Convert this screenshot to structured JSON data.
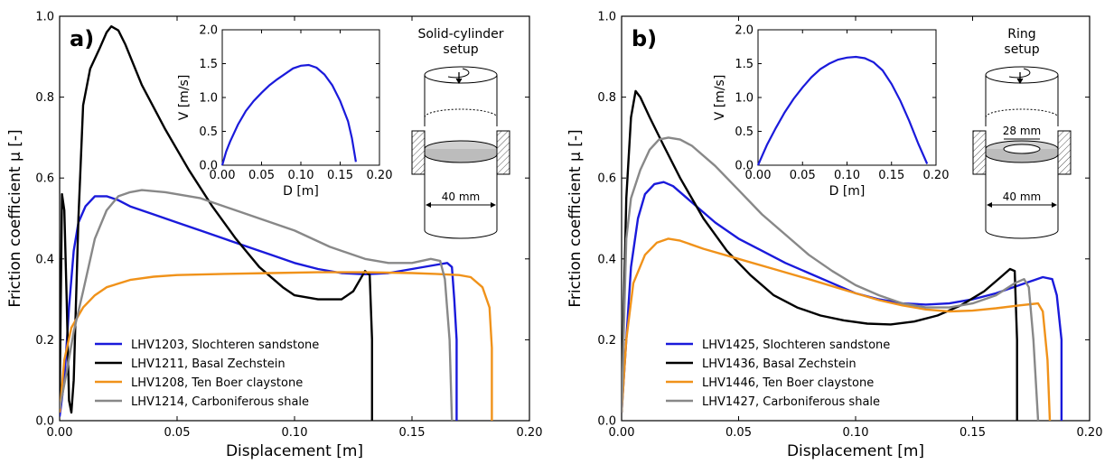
{
  "chart_data": [
    {
      "type": "line",
      "panel_label": "a)",
      "xlabel": "Displacement [m]",
      "ylabel": "Friction coefficient μ [-]",
      "xlim": [
        0,
        0.2
      ],
      "ylim": [
        0,
        1.0
      ],
      "xticks": [
        "0.00",
        "0.05",
        "0.10",
        "0.15",
        "0.20"
      ],
      "yticks": [
        "0.0",
        "0.2",
        "0.4",
        "0.6",
        "0.8",
        "1.0"
      ],
      "legend_position": "lower-left",
      "series": [
        {
          "name": "LHV1203, Slochteren sandstone",
          "color": "#1a1adb",
          "points": [
            [
              0,
              0.01
            ],
            [
              0.002,
              0.1
            ],
            [
              0.004,
              0.28
            ],
            [
              0.006,
              0.42
            ],
            [
              0.008,
              0.49
            ],
            [
              0.011,
              0.53
            ],
            [
              0.015,
              0.555
            ],
            [
              0.02,
              0.555
            ],
            [
              0.025,
              0.545
            ],
            [
              0.03,
              0.53
            ],
            [
              0.04,
              0.51
            ],
            [
              0.05,
              0.49
            ],
            [
              0.06,
              0.47
            ],
            [
              0.07,
              0.45
            ],
            [
              0.08,
              0.43
            ],
            [
              0.09,
              0.41
            ],
            [
              0.1,
              0.39
            ],
            [
              0.11,
              0.375
            ],
            [
              0.12,
              0.365
            ],
            [
              0.13,
              0.362
            ],
            [
              0.14,
              0.365
            ],
            [
              0.15,
              0.375
            ],
            [
              0.16,
              0.385
            ],
            [
              0.165,
              0.39
            ],
            [
              0.167,
              0.38
            ],
            [
              0.168,
              0.3
            ],
            [
              0.169,
              0.2
            ],
            [
              0.169,
              0.0
            ]
          ]
        },
        {
          "name": "LHV1211, Basal Zechstein",
          "color": "#000000",
          "points": [
            [
              0,
              0.04
            ],
            [
              0.001,
              0.56
            ],
            [
              0.002,
              0.52
            ],
            [
              0.003,
              0.3
            ],
            [
              0.004,
              0.05
            ],
            [
              0.005,
              0.02
            ],
            [
              0.006,
              0.1
            ],
            [
              0.008,
              0.5
            ],
            [
              0.01,
              0.78
            ],
            [
              0.013,
              0.87
            ],
            [
              0.017,
              0.92
            ],
            [
              0.02,
              0.96
            ],
            [
              0.022,
              0.975
            ],
            [
              0.025,
              0.965
            ],
            [
              0.028,
              0.93
            ],
            [
              0.035,
              0.83
            ],
            [
              0.045,
              0.72
            ],
            [
              0.055,
              0.62
            ],
            [
              0.065,
              0.53
            ],
            [
              0.075,
              0.45
            ],
            [
              0.085,
              0.38
            ],
            [
              0.095,
              0.33
            ],
            [
              0.1,
              0.31
            ],
            [
              0.11,
              0.3
            ],
            [
              0.12,
              0.3
            ],
            [
              0.125,
              0.32
            ],
            [
              0.13,
              0.37
            ],
            [
              0.132,
              0.36
            ],
            [
              0.133,
              0.2
            ],
            [
              0.133,
              0.0
            ]
          ]
        },
        {
          "name": "LHV1208, Ten Boer claystone",
          "color": "#f0921a",
          "points": [
            [
              0,
              0.02
            ],
            [
              0.002,
              0.15
            ],
            [
              0.005,
              0.23
            ],
            [
              0.01,
              0.28
            ],
            [
              0.015,
              0.31
            ],
            [
              0.02,
              0.33
            ],
            [
              0.03,
              0.348
            ],
            [
              0.04,
              0.356
            ],
            [
              0.05,
              0.36
            ],
            [
              0.07,
              0.363
            ],
            [
              0.09,
              0.365
            ],
            [
              0.11,
              0.367
            ],
            [
              0.13,
              0.367
            ],
            [
              0.15,
              0.365
            ],
            [
              0.16,
              0.363
            ],
            [
              0.17,
              0.36
            ],
            [
              0.175,
              0.355
            ],
            [
              0.18,
              0.33
            ],
            [
              0.183,
              0.28
            ],
            [
              0.184,
              0.18
            ],
            [
              0.184,
              0.0
            ]
          ]
        },
        {
          "name": "LHV1214, Carboniferous shale",
          "color": "#888888",
          "points": [
            [
              0,
              0.03
            ],
            [
              0.003,
              0.12
            ],
            [
              0.006,
              0.22
            ],
            [
              0.01,
              0.32
            ],
            [
              0.015,
              0.45
            ],
            [
              0.02,
              0.52
            ],
            [
              0.025,
              0.555
            ],
            [
              0.03,
              0.565
            ],
            [
              0.035,
              0.57
            ],
            [
              0.045,
              0.565
            ],
            [
              0.06,
              0.55
            ],
            [
              0.08,
              0.51
            ],
            [
              0.1,
              0.47
            ],
            [
              0.115,
              0.43
            ],
            [
              0.13,
              0.4
            ],
            [
              0.14,
              0.39
            ],
            [
              0.15,
              0.39
            ],
            [
              0.158,
              0.4
            ],
            [
              0.162,
              0.395
            ],
            [
              0.164,
              0.35
            ],
            [
              0.166,
              0.2
            ],
            [
              0.167,
              0.0
            ]
          ]
        }
      ],
      "inset": {
        "type": "line",
        "xlabel": "D [m]",
        "ylabel": "V [m/s]",
        "xlim": [
          0,
          0.2
        ],
        "ylim": [
          0,
          2.0
        ],
        "xticks": [
          "0.00",
          "0.05",
          "0.10",
          "0.15",
          "0.20"
        ],
        "yticks": [
          "0.0",
          "0.5",
          "1.0",
          "1.5",
          "2.0"
        ],
        "color": "#1a1adb",
        "points": [
          [
            0,
            0
          ],
          [
            0.005,
            0.2
          ],
          [
            0.01,
            0.35
          ],
          [
            0.02,
            0.6
          ],
          [
            0.03,
            0.8
          ],
          [
            0.04,
            0.95
          ],
          [
            0.05,
            1.07
          ],
          [
            0.06,
            1.18
          ],
          [
            0.07,
            1.27
          ],
          [
            0.08,
            1.35
          ],
          [
            0.09,
            1.43
          ],
          [
            0.1,
            1.47
          ],
          [
            0.11,
            1.48
          ],
          [
            0.12,
            1.44
          ],
          [
            0.13,
            1.34
          ],
          [
            0.14,
            1.18
          ],
          [
            0.15,
            0.95
          ],
          [
            0.16,
            0.65
          ],
          [
            0.165,
            0.4
          ],
          [
            0.17,
            0.05
          ]
        ]
      },
      "setup_title_lines": [
        "Solid-cylinder",
        "setup"
      ],
      "setup_dims": [
        "40 mm"
      ]
    },
    {
      "type": "line",
      "panel_label": "b)",
      "xlabel": "Displacement [m]",
      "ylabel": "Friction coefficient μ [-]",
      "xlim": [
        0,
        0.2
      ],
      "ylim": [
        0,
        1.0
      ],
      "xticks": [
        "0.00",
        "0.05",
        "0.10",
        "0.15",
        "0.20"
      ],
      "yticks": [
        "0.0",
        "0.2",
        "0.4",
        "0.6",
        "0.8",
        "1.0"
      ],
      "legend_position": "lower-left",
      "series": [
        {
          "name": "LHV1425, Slochteren sandstone",
          "color": "#1a1adb",
          "points": [
            [
              0,
              0.02
            ],
            [
              0.002,
              0.2
            ],
            [
              0.004,
              0.38
            ],
            [
              0.007,
              0.5
            ],
            [
              0.01,
              0.56
            ],
            [
              0.014,
              0.585
            ],
            [
              0.018,
              0.59
            ],
            [
              0.022,
              0.58
            ],
            [
              0.03,
              0.54
            ],
            [
              0.04,
              0.49
            ],
            [
              0.05,
              0.45
            ],
            [
              0.06,
              0.42
            ],
            [
              0.07,
              0.39
            ],
            [
              0.08,
              0.365
            ],
            [
              0.09,
              0.34
            ],
            [
              0.1,
              0.315
            ],
            [
              0.11,
              0.3
            ],
            [
              0.12,
              0.29
            ],
            [
              0.13,
              0.287
            ],
            [
              0.14,
              0.29
            ],
            [
              0.15,
              0.3
            ],
            [
              0.16,
              0.315
            ],
            [
              0.17,
              0.335
            ],
            [
              0.18,
              0.355
            ],
            [
              0.184,
              0.35
            ],
            [
              0.186,
              0.31
            ],
            [
              0.188,
              0.2
            ],
            [
              0.188,
              0.0
            ]
          ]
        },
        {
          "name": "LHV1436, Basal Zechstein",
          "color": "#000000",
          "points": [
            [
              0,
              0.02
            ],
            [
              0.001,
              0.3
            ],
            [
              0.002,
              0.55
            ],
            [
              0.004,
              0.75
            ],
            [
              0.006,
              0.815
            ],
            [
              0.008,
              0.8
            ],
            [
              0.012,
              0.75
            ],
            [
              0.018,
              0.68
            ],
            [
              0.025,
              0.6
            ],
            [
              0.035,
              0.5
            ],
            [
              0.045,
              0.42
            ],
            [
              0.055,
              0.36
            ],
            [
              0.065,
              0.31
            ],
            [
              0.075,
              0.28
            ],
            [
              0.085,
              0.26
            ],
            [
              0.095,
              0.248
            ],
            [
              0.105,
              0.24
            ],
            [
              0.115,
              0.238
            ],
            [
              0.125,
              0.245
            ],
            [
              0.135,
              0.26
            ],
            [
              0.145,
              0.285
            ],
            [
              0.155,
              0.32
            ],
            [
              0.162,
              0.355
            ],
            [
              0.166,
              0.375
            ],
            [
              0.168,
              0.37
            ],
            [
              0.169,
              0.2
            ],
            [
              0.169,
              0.0
            ]
          ]
        },
        {
          "name": "LHV1446, Ten Boer claystone",
          "color": "#f0921a",
          "points": [
            [
              0,
              0.02
            ],
            [
              0.002,
              0.2
            ],
            [
              0.005,
              0.34
            ],
            [
              0.01,
              0.41
            ],
            [
              0.015,
              0.44
            ],
            [
              0.02,
              0.45
            ],
            [
              0.025,
              0.445
            ],
            [
              0.035,
              0.425
            ],
            [
              0.05,
              0.4
            ],
            [
              0.065,
              0.375
            ],
            [
              0.08,
              0.35
            ],
            [
              0.1,
              0.315
            ],
            [
              0.11,
              0.298
            ],
            [
              0.12,
              0.285
            ],
            [
              0.13,
              0.275
            ],
            [
              0.14,
              0.27
            ],
            [
              0.15,
              0.272
            ],
            [
              0.16,
              0.278
            ],
            [
              0.17,
              0.285
            ],
            [
              0.178,
              0.29
            ],
            [
              0.18,
              0.27
            ],
            [
              0.182,
              0.15
            ],
            [
              0.183,
              0.0
            ]
          ]
        },
        {
          "name": "LHV1427, Carboniferous shale",
          "color": "#888888",
          "points": [
            [
              0,
              0.02
            ],
            [
              0.002,
              0.45
            ],
            [
              0.004,
              0.55
            ],
            [
              0.008,
              0.62
            ],
            [
              0.012,
              0.67
            ],
            [
              0.016,
              0.695
            ],
            [
              0.02,
              0.7
            ],
            [
              0.025,
              0.695
            ],
            [
              0.03,
              0.68
            ],
            [
              0.04,
              0.63
            ],
            [
              0.05,
              0.57
            ],
            [
              0.06,
              0.51
            ],
            [
              0.07,
              0.46
            ],
            [
              0.08,
              0.41
            ],
            [
              0.09,
              0.37
            ],
            [
              0.1,
              0.335
            ],
            [
              0.11,
              0.31
            ],
            [
              0.12,
              0.29
            ],
            [
              0.13,
              0.28
            ],
            [
              0.14,
              0.28
            ],
            [
              0.15,
              0.29
            ],
            [
              0.16,
              0.31
            ],
            [
              0.168,
              0.34
            ],
            [
              0.172,
              0.35
            ],
            [
              0.174,
              0.33
            ],
            [
              0.176,
              0.2
            ],
            [
              0.178,
              0.0
            ]
          ]
        }
      ],
      "inset": {
        "type": "line",
        "xlabel": "D [m]",
        "ylabel": "V [m/s]",
        "xlim": [
          0,
          0.2
        ],
        "ylim": [
          0,
          2.0
        ],
        "xticks": [
          "0.00",
          "0.05",
          "0.10",
          "0.15",
          "0.20"
        ],
        "yticks": [
          "0.0",
          "0.5",
          "1.0",
          "1.5",
          "2.0"
        ],
        "color": "#1a1adb",
        "points": [
          [
            0,
            0
          ],
          [
            0.005,
            0.15
          ],
          [
            0.01,
            0.3
          ],
          [
            0.02,
            0.55
          ],
          [
            0.03,
            0.78
          ],
          [
            0.04,
            0.98
          ],
          [
            0.05,
            1.15
          ],
          [
            0.06,
            1.3
          ],
          [
            0.07,
            1.42
          ],
          [
            0.08,
            1.5
          ],
          [
            0.09,
            1.56
          ],
          [
            0.1,
            1.59
          ],
          [
            0.11,
            1.6
          ],
          [
            0.12,
            1.58
          ],
          [
            0.13,
            1.52
          ],
          [
            0.14,
            1.4
          ],
          [
            0.15,
            1.2
          ],
          [
            0.16,
            0.95
          ],
          [
            0.17,
            0.65
          ],
          [
            0.18,
            0.32
          ],
          [
            0.19,
            0.02
          ]
        ]
      },
      "setup_title_lines": [
        "Ring",
        "setup"
      ],
      "setup_dims": [
        "28 mm",
        "40 mm"
      ]
    }
  ]
}
